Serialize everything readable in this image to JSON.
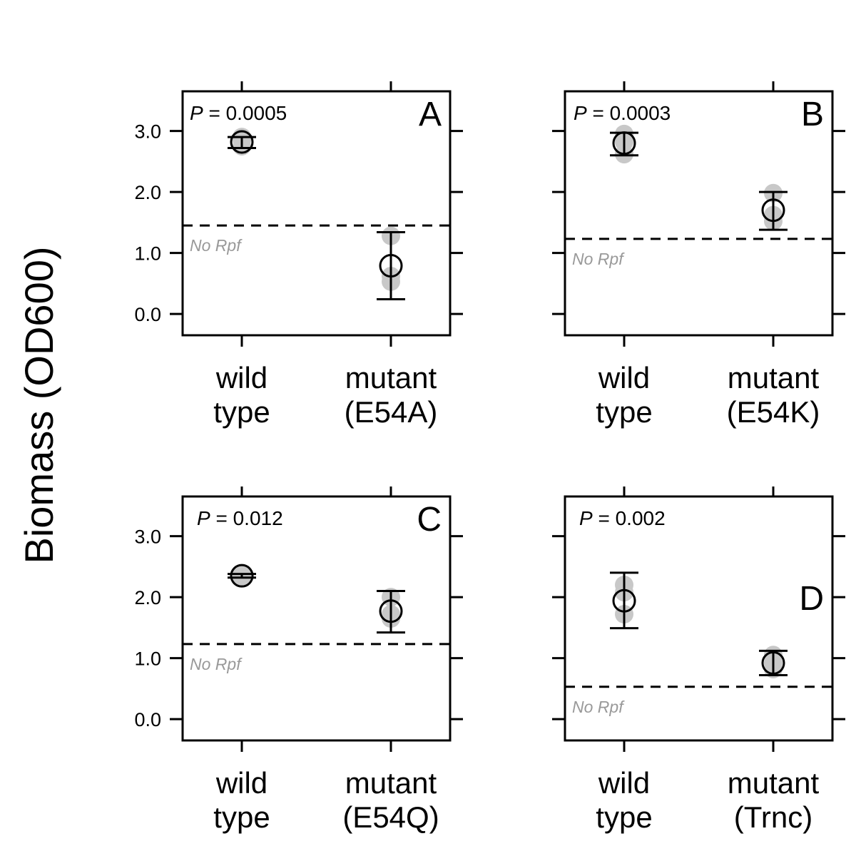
{
  "chart_data": {
    "type": "scatter",
    "ylabel": "Biomass (OD600)",
    "ylim": [
      -0.35,
      3.65
    ],
    "yticks": [
      0.0,
      1.0,
      2.0,
      3.0
    ],
    "ytick_labels": [
      "0.0",
      "1.0",
      "2.0",
      "3.0"
    ],
    "grid": false,
    "panels": [
      {
        "letter": "A",
        "p_label": "P",
        "p_value": " = 0.0005",
        "reference": {
          "label": "No Rpf",
          "value": 1.45
        },
        "categories": [
          {
            "line1": "wild",
            "line2": "type",
            "mean": 2.82,
            "ci_low": 2.72,
            "ci_high": 2.9,
            "points": [
              2.75,
              2.85,
              2.9
            ]
          },
          {
            "line1": "mutant",
            "line2": "(E54A)",
            "mean": 0.79,
            "ci_low": 0.24,
            "ci_high": 1.34,
            "points": [
              0.53,
              0.62,
              1.28
            ]
          }
        ]
      },
      {
        "letter": "B",
        "p_label": "P",
        "p_value": " = 0.0003",
        "reference": {
          "label": "No Rpf",
          "value": 1.23
        },
        "categories": [
          {
            "line1": "wild",
            "line2": "type",
            "mean": 2.8,
            "ci_low": 2.6,
            "ci_high": 2.97,
            "points": [
              2.62,
              2.82,
              2.95
            ]
          },
          {
            "line1": "mutant",
            "line2": "(E54K)",
            "mean": 1.7,
            "ci_low": 1.38,
            "ci_high": 2.0,
            "points": [
              1.52,
              1.62,
              1.98
            ]
          }
        ]
      },
      {
        "letter": "C",
        "p_label": "P",
        "p_value": " = 0.012",
        "reference": {
          "label": "No Rpf",
          "value": 1.23
        },
        "categories": [
          {
            "line1": "wild",
            "line2": "type",
            "mean": 2.35,
            "ci_low": 2.32,
            "ci_high": 2.38,
            "points": [
              2.33,
              2.35,
              2.37
            ]
          },
          {
            "line1": "mutant",
            "line2": "(E54Q)",
            "mean": 1.77,
            "ci_low": 1.42,
            "ci_high": 2.1,
            "points": [
              1.65,
              1.72,
              2.0
            ]
          }
        ]
      },
      {
        "letter": "D",
        "p_label": "P",
        "p_value": " = 0.002",
        "reference": {
          "label": "No Rpf",
          "value": 0.53
        },
        "categories": [
          {
            "line1": "wild",
            "line2": "type",
            "mean": 1.94,
            "ci_low": 1.49,
            "ci_high": 2.4,
            "points": [
              1.72,
              2.08,
              2.2
            ]
          },
          {
            "line1": "mutant",
            "line2": "(Trnc)",
            "mean": 0.92,
            "ci_low": 0.72,
            "ci_high": 1.12,
            "points": [
              0.82,
              0.92,
              1.05
            ]
          }
        ]
      }
    ]
  }
}
